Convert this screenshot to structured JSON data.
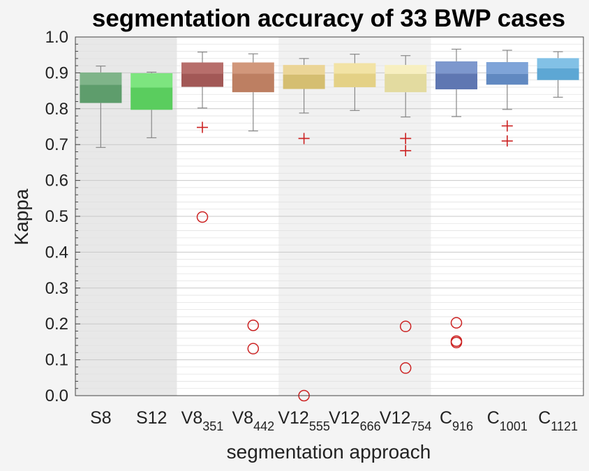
{
  "chart_data": {
    "type": "box",
    "title": "segmentation accuracy of 33 BWP cases",
    "xlabel": "segmentation approach",
    "ylabel": "Kappa",
    "ylim": [
      0.0,
      1.0
    ],
    "yticks": [
      "0.0",
      "0.1",
      "0.2",
      "0.3",
      "0.4",
      "0.5",
      "0.6",
      "0.7",
      "0.8",
      "0.9",
      "1.0"
    ],
    "grid": true,
    "categories": [
      {
        "main": "S8",
        "sub": ""
      },
      {
        "main": "S12",
        "sub": ""
      },
      {
        "main": "V8",
        "sub": "351"
      },
      {
        "main": "V8",
        "sub": "442"
      },
      {
        "main": "V12",
        "sub": "555"
      },
      {
        "main": "V12",
        "sub": "666"
      },
      {
        "main": "V12",
        "sub": "754"
      },
      {
        "main": "C",
        "sub": "916"
      },
      {
        "main": "C",
        "sub": "1001"
      },
      {
        "main": "C",
        "sub": "1121"
      }
    ],
    "boxes": [
      {
        "whisker_low": 0.692,
        "q1": 0.816,
        "median": 0.867,
        "q3": 0.901,
        "whisker_high": 0.919,
        "outliers_plus": [],
        "outliers_circle": [],
        "color_light": "#7fb489",
        "color_dark": "#5e9d6c"
      },
      {
        "whisker_low": 0.719,
        "q1": 0.797,
        "median": 0.859,
        "q3": 0.899,
        "whisker_high": 0.902,
        "outliers_plus": [],
        "outliers_circle": [],
        "color_light": "#7de57f",
        "color_dark": "#5acd5e"
      },
      {
        "whisker_low": 0.802,
        "q1": 0.861,
        "median": 0.898,
        "q3": 0.929,
        "whisker_high": 0.958,
        "outliers_plus": [
          0.748
        ],
        "outliers_circle": [
          0.498
        ],
        "color_light": "#b76e6b",
        "color_dark": "#a25856"
      },
      {
        "whisker_low": 0.738,
        "q1": 0.846,
        "median": 0.898,
        "q3": 0.929,
        "whisker_high": 0.953,
        "outliers_plus": [],
        "outliers_circle": [
          0.196,
          0.131
        ],
        "color_light": "#d1977b",
        "color_dark": "#bd7f62"
      },
      {
        "whisker_low": 0.788,
        "q1": 0.855,
        "median": 0.895,
        "q3": 0.922,
        "whisker_high": 0.94,
        "outliers_plus": [
          0.717
        ],
        "outliers_circle": [
          0.0
        ],
        "color_light": "#ebd597",
        "color_dark": "#d5be71"
      },
      {
        "whisker_low": 0.795,
        "q1": 0.86,
        "median": 0.898,
        "q3": 0.927,
        "whisker_high": 0.952,
        "outliers_plus": [],
        "outliers_circle": [],
        "color_light": "#f2e3a5",
        "color_dark": "#e4d186"
      },
      {
        "whisker_low": 0.777,
        "q1": 0.846,
        "median": 0.897,
        "q3": 0.922,
        "whisker_high": 0.948,
        "outliers_plus": [
          0.717,
          0.683
        ],
        "outliers_circle": [
          0.193,
          0.077
        ],
        "color_light": "#f7efc0",
        "color_dark": "#e3dba0"
      },
      {
        "whisker_low": 0.778,
        "q1": 0.854,
        "median": 0.898,
        "q3": 0.932,
        "whisker_high": 0.966,
        "outliers_plus": [],
        "outliers_circle": [
          0.203,
          0.152,
          0.148
        ],
        "color_light": "#7d97cd",
        "color_dark": "#5f77b2"
      },
      {
        "whisker_low": 0.798,
        "q1": 0.867,
        "median": 0.897,
        "q3": 0.93,
        "whisker_high": 0.963,
        "outliers_plus": [
          0.752,
          0.71
        ],
        "outliers_circle": [],
        "color_light": "#7fa4d8",
        "color_dark": "#6189c1"
      },
      {
        "whisker_low": 0.832,
        "q1": 0.88,
        "median": 0.913,
        "q3": 0.941,
        "whisker_high": 0.959,
        "outliers_plus": [],
        "outliers_circle": [],
        "color_light": "#82c1e6",
        "color_dark": "#5da7d4"
      }
    ],
    "shaded_groups": [
      {
        "from": 0,
        "to": 1,
        "color": "#e8e8e8"
      },
      {
        "from": 2,
        "to": 3,
        "color": "#ffffff"
      },
      {
        "from": 4,
        "to": 6,
        "color": "#f1f1f1"
      },
      {
        "from": 7,
        "to": 9,
        "color": "#ffffff"
      }
    ],
    "outlier_color": "#cc2222"
  }
}
